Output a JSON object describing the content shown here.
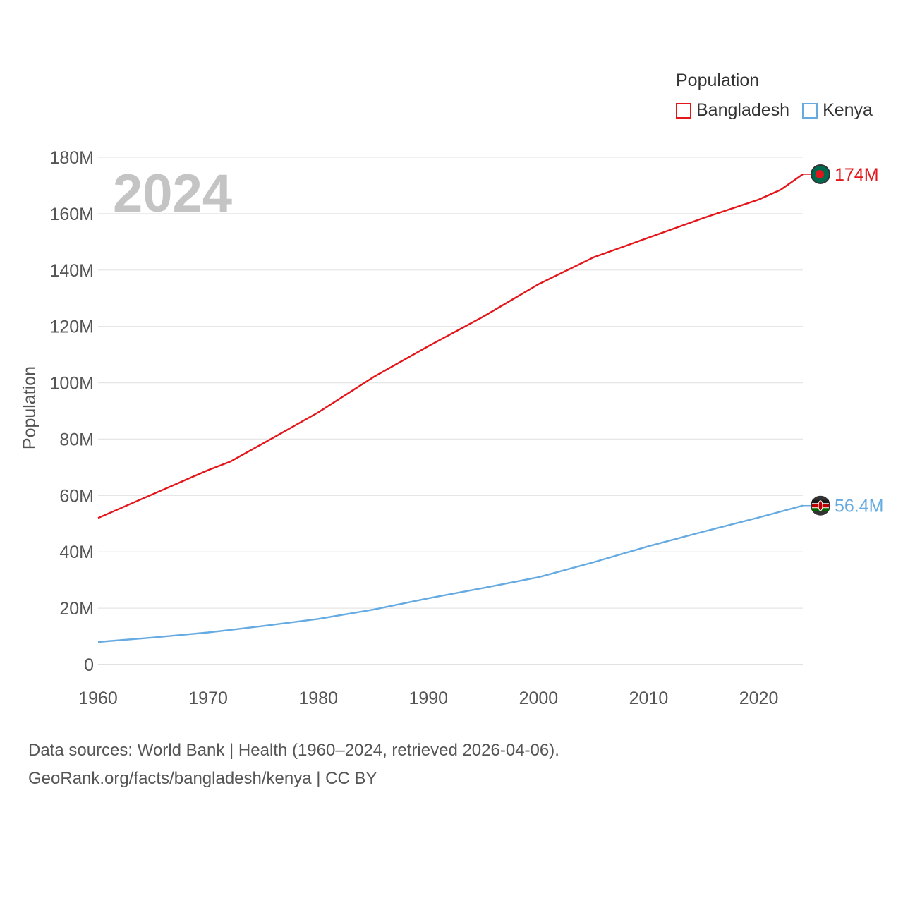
{
  "legend": {
    "title": "Population",
    "items": [
      {
        "name": "Bangladesh",
        "color": "#e3161b"
      },
      {
        "name": "Kenya",
        "color": "#66aae2"
      }
    ]
  },
  "footer": {
    "line1": "Data sources: World Bank | Health (1960–2024, retrieved 2026-04-06).",
    "line2": "GeoRank.org/facts/bangladesh/kenya | CC BY"
  },
  "chart_data": {
    "type": "line",
    "title": "",
    "year_label": "2024",
    "xlabel": "",
    "ylabel": "Population",
    "xlim": [
      1960,
      2024
    ],
    "ylim": [
      0,
      180
    ],
    "x_ticks": [
      1960,
      1970,
      1980,
      1990,
      2000,
      2010,
      2020
    ],
    "y_ticks": [
      0,
      20,
      40,
      60,
      80,
      100,
      120,
      140,
      160,
      180
    ],
    "y_tick_labels": [
      "0",
      "20M",
      "40M",
      "60M",
      "80M",
      "100M",
      "120M",
      "140M",
      "160M",
      "180M"
    ],
    "x": [
      1960,
      1965,
      1970,
      1972,
      1975,
      1980,
      1985,
      1990,
      1995,
      2000,
      2005,
      2010,
      2015,
      2020,
      2022,
      2024
    ],
    "series": [
      {
        "name": "Bangladesh",
        "color": "#e3161b",
        "values": [
          52,
          60.5,
          69,
          72,
          78.5,
          89.5,
          102,
          113,
          123.5,
          135,
          144.5,
          151.5,
          158.5,
          165,
          168.5,
          174
        ],
        "end_label": "174M",
        "marker": "flag-bangladesh"
      },
      {
        "name": "Kenya",
        "color": "#66aae2",
        "values": [
          8,
          9.6,
          11.4,
          12.3,
          13.7,
          16.2,
          19.5,
          23.5,
          27.2,
          31,
          36.3,
          42,
          47.2,
          52.2,
          54.3,
          56.4
        ],
        "end_label": "56.4M",
        "marker": "flag-kenya"
      }
    ]
  }
}
